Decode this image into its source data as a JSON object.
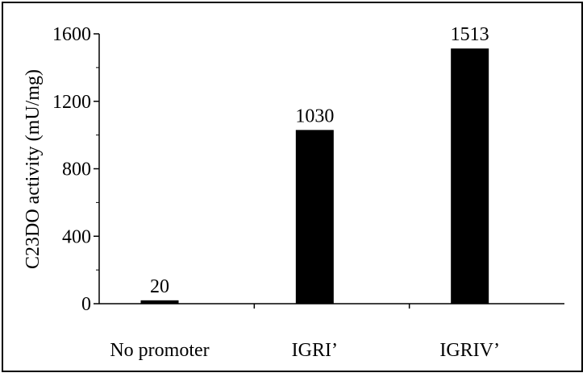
{
  "chart_data": {
    "type": "bar",
    "title": "",
    "xlabel": "",
    "ylabel": "C23DO activity (mU/mg)",
    "categories": [
      "No promoter",
      "IGRI’",
      "IGRIV’"
    ],
    "values": [
      20,
      1030,
      1513
    ],
    "data_labels": [
      "20",
      "1030",
      "1513"
    ],
    "ylim": [
      0,
      1600
    ],
    "yticks": [
      0,
      400,
      800,
      1200,
      1600
    ],
    "ytick_labels": [
      "0",
      "400",
      "800",
      "1200",
      "1600"
    ],
    "minor_ytick_step": 200,
    "bar_color": "#000000",
    "grid": false,
    "legend": "none"
  }
}
